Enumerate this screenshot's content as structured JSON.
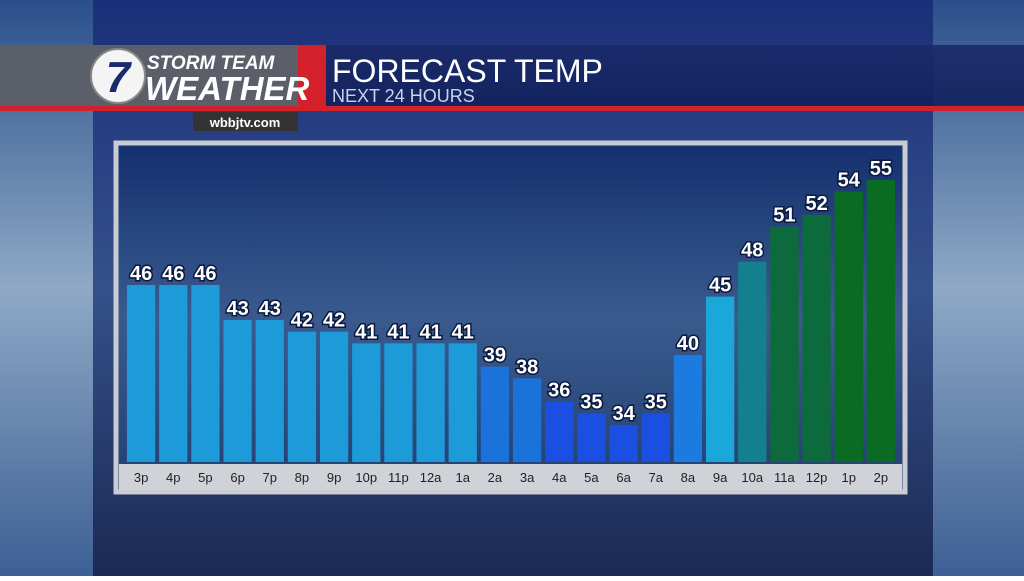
{
  "station": {
    "number": "7",
    "name_line1": "STORM TEAM",
    "name_line2": "WEATHER",
    "website": "wbbjtv.com"
  },
  "chart_data": {
    "type": "bar",
    "title": "FORECAST TEMP",
    "subtitle": "NEXT 24 HOURS",
    "categories": [
      "3p",
      "4p",
      "5p",
      "6p",
      "7p",
      "8p",
      "9p",
      "10p",
      "11p",
      "12a",
      "1a",
      "2a",
      "3a",
      "4a",
      "5a",
      "6a",
      "7a",
      "8a",
      "9a",
      "10a",
      "11a",
      "12p",
      "1p",
      "2p"
    ],
    "values": [
      46,
      46,
      46,
      43,
      43,
      42,
      42,
      41,
      41,
      41,
      41,
      39,
      38,
      36,
      35,
      34,
      35,
      40,
      45,
      48,
      51,
      52,
      54,
      55
    ],
    "colors": [
      "#1d9ad8",
      "#1d9ad8",
      "#1d9ad8",
      "#1d9ad8",
      "#1d9ad8",
      "#1d9ad8",
      "#1d9ad8",
      "#1d9ad8",
      "#1d9ad8",
      "#1d9ad8",
      "#1d9ad8",
      "#1b72da",
      "#1b72da",
      "#1a4fe2",
      "#1a4fe2",
      "#1a4fe2",
      "#1a4fe2",
      "#1b7be0",
      "#1aa8da",
      "#147f8e",
      "#0d6a3c",
      "#0d6a3c",
      "#0a6b22",
      "#0a6b22"
    ]
  }
}
